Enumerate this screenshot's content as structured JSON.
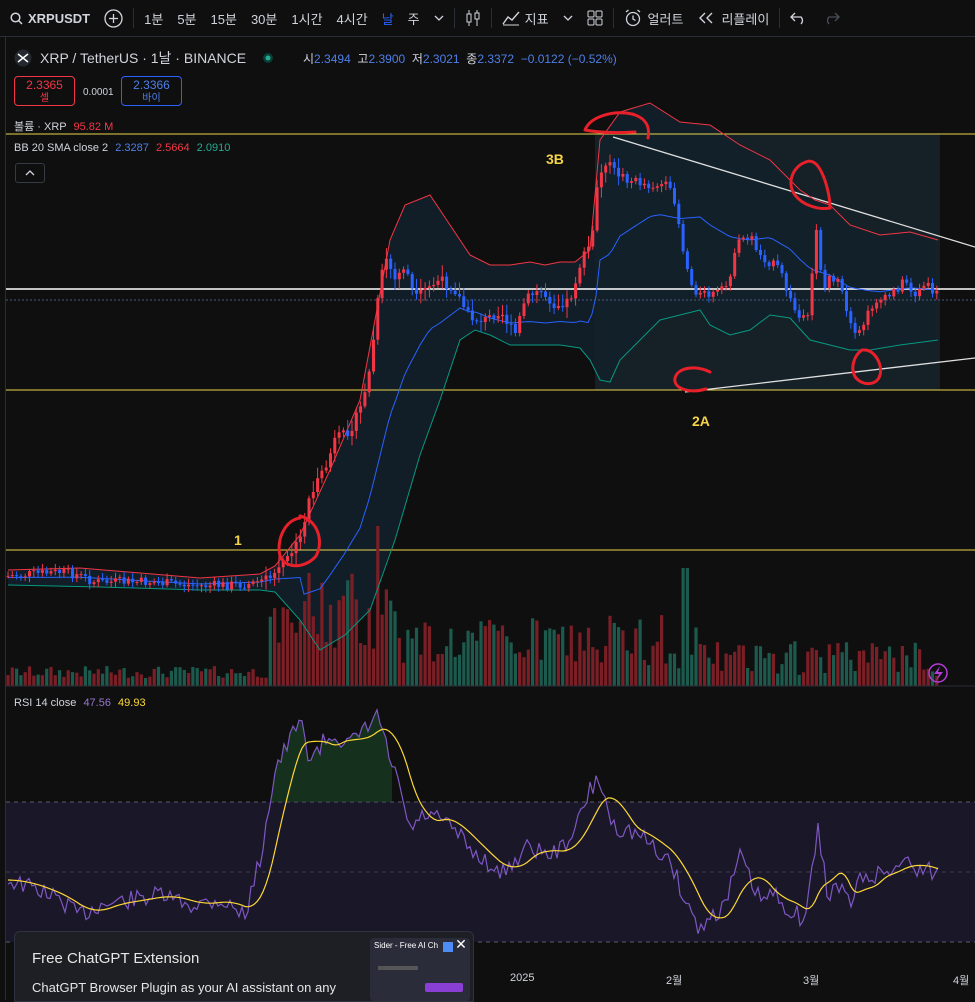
{
  "toolbar": {
    "symbol": "XRPUSDT",
    "intervals": [
      "1분",
      "5분",
      "15분",
      "30분",
      "1시간",
      "4시간",
      "날",
      "주"
    ],
    "active_interval": "날",
    "indicators_label": "지표",
    "alert_label": "얼러트",
    "replay_label": "리플레이"
  },
  "header": {
    "pair": "XRP / TetherUS · 1날 · BINANCE",
    "open_label": "시",
    "open": "2.3494",
    "high_label": "고",
    "high": "2.3900",
    "low_label": "저",
    "low": "2.3021",
    "close_label": "종",
    "close": "2.3372",
    "change": "−0.0122 (−0.52%)"
  },
  "trade": {
    "sell_price": "2.3365",
    "sell_label": "셀",
    "spread": "0.0001",
    "buy_price": "2.3366",
    "buy_label": "바이"
  },
  "indicators": {
    "volume_label": "볼륨 · XRP",
    "volume_value": "95.82 M",
    "bb_label": "BB 20 SMA close 2",
    "bb_basis": "2.3287",
    "bb_upper": "2.5664",
    "bb_lower": "2.0910",
    "rsi_label": "RSI 14 close",
    "rsi_value": "47.56",
    "rsi_ma": "49.93"
  },
  "annotations": {
    "a1": "1",
    "a2": "2A",
    "a3": "3B"
  },
  "time_axis": [
    "2025",
    "2월",
    "3월",
    "4월"
  ],
  "popup": {
    "title": "Free ChatGPT Extension",
    "text": "ChatGPT Browser Plugin as your AI assistant on any",
    "thumb_title": "Sider - Free AI Ch",
    "close_symbol": "✕"
  },
  "colors": {
    "up": "#f23645",
    "down": "#2962ff",
    "bb_upper": "#f23645",
    "bb_basis": "#2962ff",
    "bb_lower": "#089981",
    "rsi": "#7e57c2",
    "rsi_ma": "#fdd835",
    "level": "#e8d44d"
  },
  "chart_data": [
    {
      "type": "candlestick",
      "series": "XRP/USDT daily",
      "levels": [
        {
          "name": "horizontal-upper"
        },
        {
          "name": "horizontal-white"
        },
        {
          "name": "horizontal-lower"
        },
        {
          "name": "horizontal-base"
        }
      ]
    },
    {
      "type": "line",
      "series": "RSI 14",
      "bands": [
        30,
        70
      ]
    }
  ]
}
